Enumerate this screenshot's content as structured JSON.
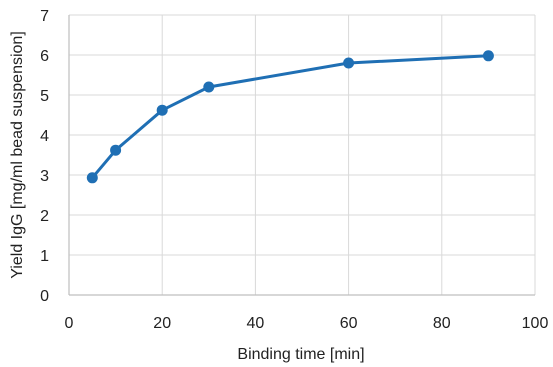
{
  "chart_data": {
    "type": "line",
    "title": "",
    "xlabel": "Binding time [min]",
    "ylabel": "Yield IgG [mg/ml bead suspension]",
    "xlim": [
      0,
      100
    ],
    "ylim": [
      0,
      7
    ],
    "x_ticks": [
      "0",
      "20",
      "40",
      "60",
      "80",
      "100"
    ],
    "y_ticks": [
      "0",
      "1",
      "2",
      "3",
      "4",
      "5",
      "6",
      "7"
    ],
    "grid": true,
    "legend": "none",
    "series": [
      {
        "color": "#1f6fb4",
        "points": [
          {
            "x": 5,
            "y": 2.93
          },
          {
            "x": 10,
            "y": 3.62
          },
          {
            "x": 20,
            "y": 4.62
          },
          {
            "x": 30,
            "y": 5.2
          },
          {
            "x": 60,
            "y": 5.8
          },
          {
            "x": 90,
            "y": 5.98
          }
        ]
      }
    ]
  }
}
